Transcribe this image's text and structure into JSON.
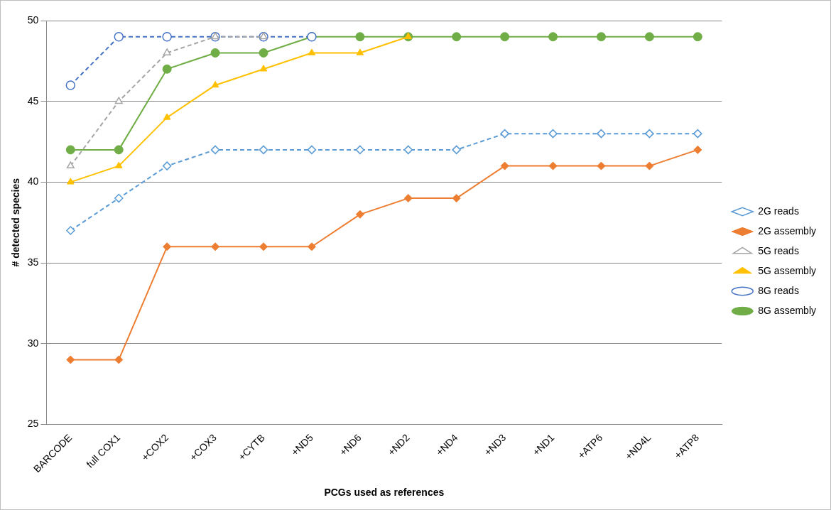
{
  "chart_data": {
    "type": "line",
    "xlabel": "PCGs used as references",
    "ylabel": "# detected species",
    "categories": [
      "BARCODE",
      "full COX1",
      "+COX2",
      "+COX3",
      "+CYTB",
      "+ND5",
      "+ND6",
      "+ND2",
      "+ND4",
      "+ND3",
      "+ND1",
      "+ATP6",
      "+ND4L",
      "+ATP8"
    ],
    "ylim": [
      25,
      50
    ],
    "yticks": [
      25,
      30,
      35,
      40,
      45,
      50
    ],
    "grid": "y",
    "legend": "right",
    "series": [
      {
        "name": "2G reads",
        "color": "#5b9bd5",
        "marker": "diamond",
        "line_style": "dashed",
        "values": [
          37,
          39,
          41,
          42,
          42,
          42,
          42,
          42,
          42,
          43,
          43,
          43,
          43,
          43
        ]
      },
      {
        "name": "2G assembly",
        "color": "#ed7d31",
        "marker": "diamond",
        "line_style": "solid",
        "values": [
          29,
          29,
          36,
          36,
          36,
          36,
          38,
          39,
          39,
          41,
          41,
          41,
          41,
          42
        ]
      },
      {
        "name": "5G reads",
        "color": "#a5a5a5",
        "marker": "triangle",
        "line_style": "dashed",
        "values": [
          41,
          45,
          48,
          49,
          49,
          null,
          null,
          null,
          null,
          null,
          null,
          null,
          null,
          null
        ]
      },
      {
        "name": "5G assembly",
        "color": "#ffc000",
        "marker": "triangle",
        "line_style": "solid",
        "values": [
          40,
          41,
          44,
          46,
          47,
          48,
          48,
          49,
          null,
          null,
          null,
          null,
          null,
          null
        ]
      },
      {
        "name": "8G reads",
        "color": "#4472c4",
        "marker": "circle",
        "line_style": "dashed",
        "values": [
          46,
          49,
          49,
          49,
          49,
          49,
          null,
          null,
          null,
          null,
          null,
          null,
          null,
          null
        ]
      },
      {
        "name": "8G assembly",
        "color": "#70ad47",
        "marker": "circle",
        "line_style": "solid",
        "values": [
          42,
          42,
          47,
          48,
          48,
          49,
          49,
          49,
          49,
          49,
          49,
          49,
          49,
          49
        ]
      }
    ]
  }
}
